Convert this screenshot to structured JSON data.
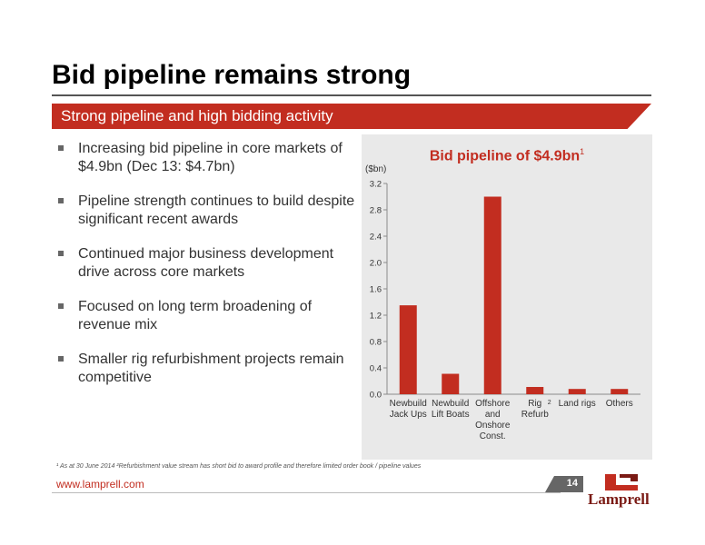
{
  "slide": {
    "title": "Bid pipeline remains strong",
    "subtitle": "Strong pipeline and high bidding activity"
  },
  "bullets": [
    "Increasing bid pipeline in core markets of $4.9bn (Dec 13: $4.7bn)",
    "Pipeline strength continues to build despite significant recent awards",
    "Continued major business development drive across core markets",
    "Focused on long term broadening of revenue mix",
    "Smaller rig refurbishment projects remain competitive"
  ],
  "chart_data": {
    "type": "bar",
    "title": "Bid pipeline of $4.9bn",
    "title_superscript": "1",
    "ylabel": "($bn)",
    "ylim": [
      0,
      3.2
    ],
    "yticks": [
      "0.0",
      "0.4",
      "0.8",
      "1.2",
      "1.6",
      "2.0",
      "2.4",
      "2.8",
      "3.2"
    ],
    "categories": [
      [
        "Newbuild",
        "Jack Ups"
      ],
      [
        "Newbuild",
        "Lift Boats"
      ],
      [
        "Offshore",
        "and",
        "Onshore",
        "Const."
      ],
      [
        "Rig",
        "Refurb"
      ],
      [
        "Land rigs"
      ],
      [
        "Others"
      ]
    ],
    "category_superscripts": [
      "",
      "",
      "",
      "2",
      "",
      ""
    ],
    "values": [
      1.35,
      0.31,
      3.0,
      0.11,
      0.08,
      0.08
    ],
    "color": "#c22d20",
    "grid": false
  },
  "footer": {
    "footnote": "¹ As at 30 June 2014  ²Refurbishment value stream has short bid to award profile and therefore limited order book / pipeline values",
    "url": "www.lamprell.com",
    "page_number": "14",
    "logo_text": "Lamprell"
  },
  "colors": {
    "accent": "#c22d20",
    "panel": "#e9e9e9",
    "logo": "#7a1a14"
  }
}
